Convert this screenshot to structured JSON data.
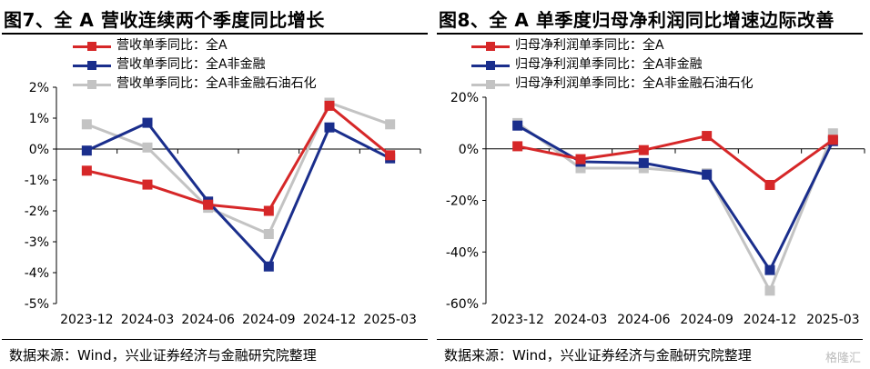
{
  "charts": [
    {
      "title": "图7、全 A 营收连续两个季度同比增长",
      "source": "数据来源：Wind，兴业证券经济与金融研究院整理"
    },
    {
      "title": "图8、全 A 单季度归母净利润同比增速边际改善",
      "source": "数据来源：Wind，兴业证券经济与金融研究院整理"
    }
  ],
  "watermark": "格隆汇",
  "chart_data": [
    {
      "type": "line",
      "categories": [
        "2023-12",
        "2024-03",
        "2024-06",
        "2024-09",
        "2024-12",
        "2025-03"
      ],
      "ylim": [
        -5,
        2
      ],
      "yticks": [
        2,
        1,
        0,
        -1,
        -2,
        -3,
        -4,
        -5
      ],
      "ytick_labels": [
        "2%",
        "1%",
        "0%",
        "-1%",
        "-2%",
        "-3%",
        "-4%",
        "-5%"
      ],
      "legend_position": "top-left",
      "series": [
        {
          "name": "营收单季同比：全A",
          "color": "#d62728",
          "values": [
            -0.7,
            -1.15,
            -1.8,
            -2.0,
            1.4,
            -0.2
          ]
        },
        {
          "name": "营收单季同比：全A非金融",
          "color": "#1a2e8c",
          "values": [
            -0.05,
            0.85,
            -1.7,
            -3.8,
            0.7,
            -0.3
          ]
        },
        {
          "name": "营收单季同比：全A非金融石油石化",
          "color": "#c3c3c3",
          "values": [
            0.8,
            0.05,
            -1.9,
            -2.75,
            1.5,
            0.8
          ]
        }
      ]
    },
    {
      "type": "line",
      "categories": [
        "2023-12",
        "2024-03",
        "2024-06",
        "2024-09",
        "2024-12",
        "2025-03"
      ],
      "ylim": [
        -60,
        20
      ],
      "yticks": [
        20,
        0,
        -20,
        -40,
        -60
      ],
      "ytick_labels": [
        "20%",
        "0%",
        "-20%",
        "-40%",
        "-60%"
      ],
      "legend_position": "top-left",
      "series": [
        {
          "name": "归母净利润单季同比：全A",
          "color": "#d62728",
          "values": [
            1,
            -4,
            -0.5,
            5,
            -14,
            3.5
          ]
        },
        {
          "name": "归母净利润单季同比：全A非金融",
          "color": "#1a2e8c",
          "values": [
            9,
            -5,
            -5.5,
            -10,
            -47,
            3
          ]
        },
        {
          "name": "归母净利润单季同比：全A非金融石油石化",
          "color": "#c3c3c3",
          "values": [
            10,
            -7.5,
            -7.5,
            -9.5,
            -55,
            6
          ]
        }
      ]
    }
  ]
}
